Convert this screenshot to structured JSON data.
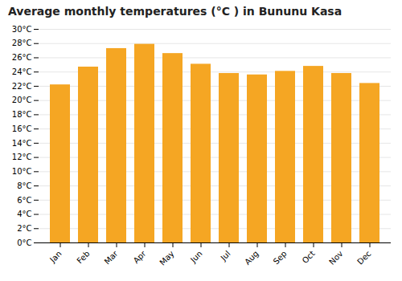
{
  "chart_data": {
    "type": "bar",
    "title": "Average monthly temperatures (°C ) in Bununu Kasa",
    "categories": [
      "Jan",
      "Feb",
      "Mar",
      "Apr",
      "May",
      "Jun",
      "Jul",
      "Aug",
      "Sep",
      "Oct",
      "Nov",
      "Dec"
    ],
    "values": [
      22.2,
      24.7,
      27.3,
      27.9,
      26.6,
      25.1,
      23.8,
      23.6,
      24.1,
      24.8,
      23.8,
      22.4
    ],
    "color": "#F5A623",
    "ylim": [
      0,
      30
    ],
    "yticks": [
      {
        "value": 0,
        "label": "0°C"
      },
      {
        "value": 2,
        "label": "2°C"
      },
      {
        "value": 4,
        "label": "4°C"
      },
      {
        "value": 6,
        "label": "6°C"
      },
      {
        "value": 8,
        "label": "8°C"
      },
      {
        "value": 10,
        "label": "10°C"
      },
      {
        "value": 12,
        "label": "12°C"
      },
      {
        "value": 14,
        "label": "14°C"
      },
      {
        "value": 16,
        "label": "16°C"
      },
      {
        "value": 18,
        "label": "18°C"
      },
      {
        "value": 20,
        "label": "20°C"
      },
      {
        "value": 22,
        "label": "22°C"
      },
      {
        "value": 24,
        "label": "24°C"
      },
      {
        "value": 26,
        "label": "26°C"
      },
      {
        "value": 28,
        "label": "28°C"
      },
      {
        "value": 30,
        "label": "30°C"
      }
    ],
    "grid": true
  }
}
